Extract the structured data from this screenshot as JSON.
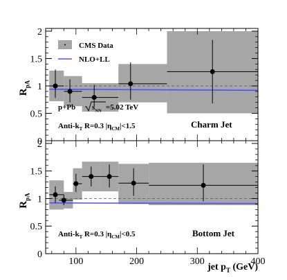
{
  "chart_data": [
    {
      "type": "scatter",
      "panel": "top",
      "ylabel_main": "R",
      "ylabel_sub": "pA",
      "ylim": [
        0,
        2.05
      ],
      "xlim": [
        50,
        400
      ],
      "y_ticks": [
        "0",
        "0.5",
        "1",
        "1.5",
        "2"
      ],
      "y_tick_values": [
        0,
        0.5,
        1,
        1.5,
        2
      ],
      "reference_line": 1.0,
      "legend": {
        "placement": "top-left",
        "entries": [
          {
            "name": "CMS Data",
            "marker": "gray-box-with-point"
          },
          {
            "name": "NLO+LL",
            "marker": "blue-line"
          }
        ]
      },
      "annotations": {
        "system": "p+Pb",
        "energy_sqrt": "s",
        "energy_sub": "NN",
        "energy_value": "=5.02 TeV",
        "algo_prefix": "Anti-k",
        "algo_sub": "T",
        "algo_r": " R=0.3  |η",
        "eta_sub": "CM",
        "eta_cut": "|<1.5",
        "label": "Charm Jet",
        "label_color": "#ff0000"
      },
      "points": [
        {
          "x": 66,
          "xlow": 56,
          "xhigh": 80,
          "y": 1.0,
          "stat_low": 0.78,
          "stat_high": 1.3,
          "sys_low": 0.72,
          "sys_high": 1.28
        },
        {
          "x": 90,
          "xlow": 80,
          "xhigh": 110,
          "y": 0.9,
          "stat_low": 0.7,
          "stat_high": 1.12,
          "sys_low": 0.63,
          "sys_high": 1.18
        },
        {
          "x": 130,
          "xlow": 110,
          "xhigh": 170,
          "y": 0.79,
          "stat_low": 0.62,
          "stat_high": 1.02,
          "sys_low": 0.53,
          "sys_high": 1.05
        },
        {
          "x": 190,
          "xlow": 170,
          "xhigh": 250,
          "y": 1.04,
          "stat_low": 0.75,
          "stat_high": 1.43,
          "sys_low": 0.7,
          "sys_high": 1.4
        },
        {
          "x": 325,
          "xlow": 250,
          "xhigh": 400,
          "y": 1.26,
          "stat_low": 0.68,
          "stat_high": 1.84,
          "sys_low": 0.5,
          "sys_high": 2.0
        }
      ],
      "nlo_ll": {
        "x": [
          56,
          400
        ],
        "y": [
          0.94,
          0.92
        ],
        "color": "#5050ff"
      }
    },
    {
      "type": "scatter",
      "panel": "bottom",
      "ylabel_main": "R",
      "ylabel_sub": "pA",
      "ylim": [
        0,
        2.05
      ],
      "xlim": [
        50,
        400
      ],
      "y_ticks": [
        "0",
        "0.5",
        "1",
        "1.5",
        "2"
      ],
      "y_tick_values": [
        0,
        0.5,
        1,
        1.5,
        2
      ],
      "x_ticks": [
        "100",
        "200",
        "300",
        "400"
      ],
      "x_tick_values": [
        100,
        200,
        300,
        400
      ],
      "xlabel_main": "jet p",
      "xlabel_sub": "T",
      "xlabel_unit": " (GeV)",
      "reference_line": 1.0,
      "annotations": {
        "algo_prefix": "Anti-k",
        "algo_sub": "T",
        "algo_r": " R=0.3  |η",
        "eta_sub": "CM",
        "eta_cut": "|<0.5",
        "label": "Bottom Jet",
        "label_color": "#ff0000"
      },
      "points": [
        {
          "x": 66,
          "xlow": 56,
          "xhigh": 80,
          "y": 1.07,
          "stat_low": 0.92,
          "stat_high": 1.22,
          "sys_low": 0.8,
          "sys_high": 1.33
        },
        {
          "x": 80,
          "xlow": 72,
          "xhigh": 95,
          "y": 0.97,
          "stat_low": 0.88,
          "stat_high": 1.07,
          "sys_low": 0.82,
          "sys_high": 1.12
        },
        {
          "x": 100,
          "xlow": 95,
          "xhigh": 110,
          "y": 1.27,
          "stat_low": 1.12,
          "stat_high": 1.45,
          "sys_low": 0.98,
          "sys_high": 1.55
        },
        {
          "x": 125,
          "xlow": 110,
          "xhigh": 140,
          "y": 1.4,
          "stat_low": 1.22,
          "stat_high": 1.58,
          "sys_low": 1.13,
          "sys_high": 1.67
        },
        {
          "x": 155,
          "xlow": 140,
          "xhigh": 170,
          "y": 1.4,
          "stat_low": 1.2,
          "stat_high": 1.62,
          "sys_low": 1.13,
          "sys_high": 1.67
        },
        {
          "x": 195,
          "xlow": 170,
          "xhigh": 220,
          "y": 1.28,
          "stat_low": 1.05,
          "stat_high": 1.55,
          "sys_low": 0.9,
          "sys_high": 1.63
        },
        {
          "x": 310,
          "xlow": 220,
          "xhigh": 400,
          "y": 1.24,
          "stat_low": 0.95,
          "stat_high": 1.62,
          "sys_low": 0.88,
          "sys_high": 1.65
        }
      ],
      "nlo_ll": {
        "x": [
          56,
          400
        ],
        "y": [
          0.92,
          0.91
        ],
        "color": "#5050ff"
      }
    }
  ]
}
